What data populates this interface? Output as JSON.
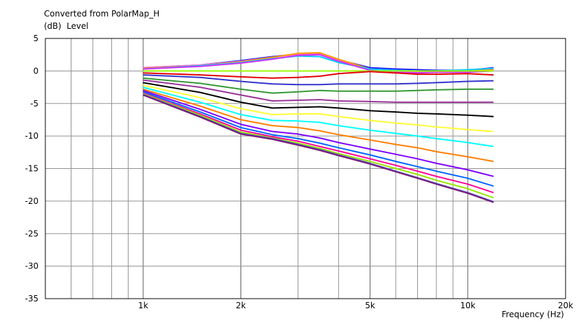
{
  "chart_data": {
    "type": "line",
    "title": "Converted from PolarMap_H",
    "ylabel_unit": "(dB)",
    "ylabel": "Level",
    "xlabel": "Frequency",
    "xlabel_unit": "(Hz)",
    "x_scale": "log",
    "xlim": [
      500,
      20000
    ],
    "ylim": [
      -35,
      5
    ],
    "grid": true,
    "y_ticks": [
      5,
      0,
      -5,
      -10,
      -15,
      -20,
      -25,
      -30,
      -35
    ],
    "x_tick_labels": [
      {
        "value": 1000,
        "label": "1k"
      },
      {
        "value": 2000,
        "label": "2k"
      },
      {
        "value": 5000,
        "label": "5k"
      },
      {
        "value": 10000,
        "label": "10k"
      },
      {
        "value": 20000,
        "label": "20k"
      }
    ],
    "x": [
      1000,
      1500,
      2000,
      2500,
      3000,
      3500,
      4000,
      5000,
      6000,
      7000,
      8000,
      10000,
      12000
    ],
    "series": [
      {
        "color": "#1a1aff",
        "values": [
          0.5,
          0.9,
          1.6,
          2.2,
          2.6,
          2.6,
          1.7,
          0.5,
          0.3,
          0.2,
          0.1,
          0.1,
          0.5
        ]
      },
      {
        "color": "#ff66cc",
        "values": [
          0.5,
          0.9,
          1.5,
          2.1,
          2.6,
          2.7,
          1.6,
          0.2,
          -0.1,
          -0.2,
          -0.1,
          -0.1,
          0.4
        ]
      },
      {
        "color": "#ff9900",
        "values": [
          0.4,
          0.8,
          1.4,
          2.1,
          2.7,
          2.8,
          1.8,
          0.3,
          0.1,
          0.0,
          -0.1,
          0.0,
          0.2
        ]
      },
      {
        "color": "#00ccff",
        "values": [
          0.3,
          0.8,
          1.3,
          1.9,
          2.3,
          2.2,
          1.3,
          0.3,
          0.1,
          0.0,
          0.0,
          0.2,
          0.4
        ]
      },
      {
        "color": "#cc33ff",
        "values": [
          0.3,
          0.7,
          1.2,
          1.8,
          2.4,
          2.5,
          1.5,
          0.1,
          -0.2,
          -0.3,
          -0.2,
          -0.2,
          0.0
        ]
      },
      {
        "color": "#99ff00",
        "values": [
          0.0,
          0.0,
          0.0,
          0.0,
          0.0,
          0.0,
          0.0,
          0.0,
          0.0,
          0.0,
          0.0,
          0.0,
          0.0
        ]
      },
      {
        "color": "#e00000",
        "values": [
          -0.3,
          -0.6,
          -0.9,
          -1.1,
          -1.0,
          -0.8,
          -0.4,
          -0.1,
          -0.3,
          -0.5,
          -0.5,
          -0.4,
          -0.6
        ]
      },
      {
        "color": "#3333cc",
        "values": [
          -0.6,
          -1.0,
          -1.6,
          -2.0,
          -2.1,
          -2.1,
          -2.0,
          -2.0,
          -2.0,
          -1.9,
          -1.8,
          -1.6,
          -1.5
        ]
      },
      {
        "color": "#339933",
        "values": [
          -1.1,
          -1.9,
          -2.8,
          -3.4,
          -3.2,
          -3.0,
          -3.1,
          -3.1,
          -3.1,
          -3.0,
          -2.9,
          -2.8,
          -2.8
        ]
      },
      {
        "color": "#993399",
        "values": [
          -1.4,
          -2.5,
          -3.7,
          -4.6,
          -4.5,
          -4.4,
          -4.6,
          -4.7,
          -4.8,
          -4.8,
          -4.8,
          -4.8,
          -4.8
        ]
      },
      {
        "color": "#000000",
        "values": [
          -1.8,
          -3.3,
          -4.8,
          -5.7,
          -5.6,
          -5.5,
          -5.7,
          -6.1,
          -6.3,
          -6.5,
          -6.6,
          -6.8,
          -7.0
        ]
      },
      {
        "color": "#ffff33",
        "values": [
          -2.2,
          -4.1,
          -5.8,
          -6.7,
          -6.6,
          -6.6,
          -7.0,
          -7.6,
          -8.0,
          -8.3,
          -8.6,
          -9.0,
          -9.3
        ]
      },
      {
        "color": "#00ffff",
        "values": [
          -2.5,
          -4.8,
          -6.7,
          -7.6,
          -7.7,
          -7.9,
          -8.4,
          -9.1,
          -9.6,
          -10.0,
          -10.4,
          -11.0,
          -11.6
        ]
      },
      {
        "color": "#ff7f00",
        "values": [
          -2.8,
          -5.4,
          -7.5,
          -8.4,
          -8.7,
          -9.2,
          -9.8,
          -10.6,
          -11.3,
          -11.8,
          -12.4,
          -13.2,
          -13.9
        ]
      },
      {
        "color": "#7f00ff",
        "values": [
          -3.0,
          -5.9,
          -8.2,
          -9.3,
          -9.7,
          -10.3,
          -11.0,
          -12.0,
          -12.8,
          -13.5,
          -14.2,
          -15.2,
          -16.2
        ]
      },
      {
        "color": "#0066ff",
        "values": [
          -3.2,
          -6.3,
          -8.7,
          -9.8,
          -10.4,
          -11.1,
          -11.8,
          -12.9,
          -13.9,
          -14.7,
          -15.4,
          -16.5,
          -17.7
        ]
      },
      {
        "color": "#ff0099",
        "values": [
          -3.4,
          -6.6,
          -9.1,
          -10.1,
          -10.8,
          -11.6,
          -12.3,
          -13.5,
          -14.5,
          -15.4,
          -16.2,
          -17.4,
          -18.7
        ]
      },
      {
        "color": "#99e600",
        "values": [
          -3.5,
          -6.8,
          -9.4,
          -10.3,
          -11.1,
          -11.9,
          -12.7,
          -13.9,
          -15.0,
          -15.9,
          -16.8,
          -18.1,
          -19.5
        ]
      },
      {
        "color": "#4d4dcc",
        "values": [
          -3.6,
          -7.0,
          -9.6,
          -10.4,
          -11.3,
          -12.1,
          -12.9,
          -14.2,
          -15.4,
          -16.4,
          -17.3,
          -18.7,
          -20.1
        ]
      },
      {
        "color": "#7a1f7a",
        "values": [
          -3.7,
          -7.1,
          -9.7,
          -10.5,
          -11.4,
          -12.2,
          -13.0,
          -14.3,
          -15.5,
          -16.5,
          -17.4,
          -18.8,
          -20.2
        ]
      }
    ]
  }
}
